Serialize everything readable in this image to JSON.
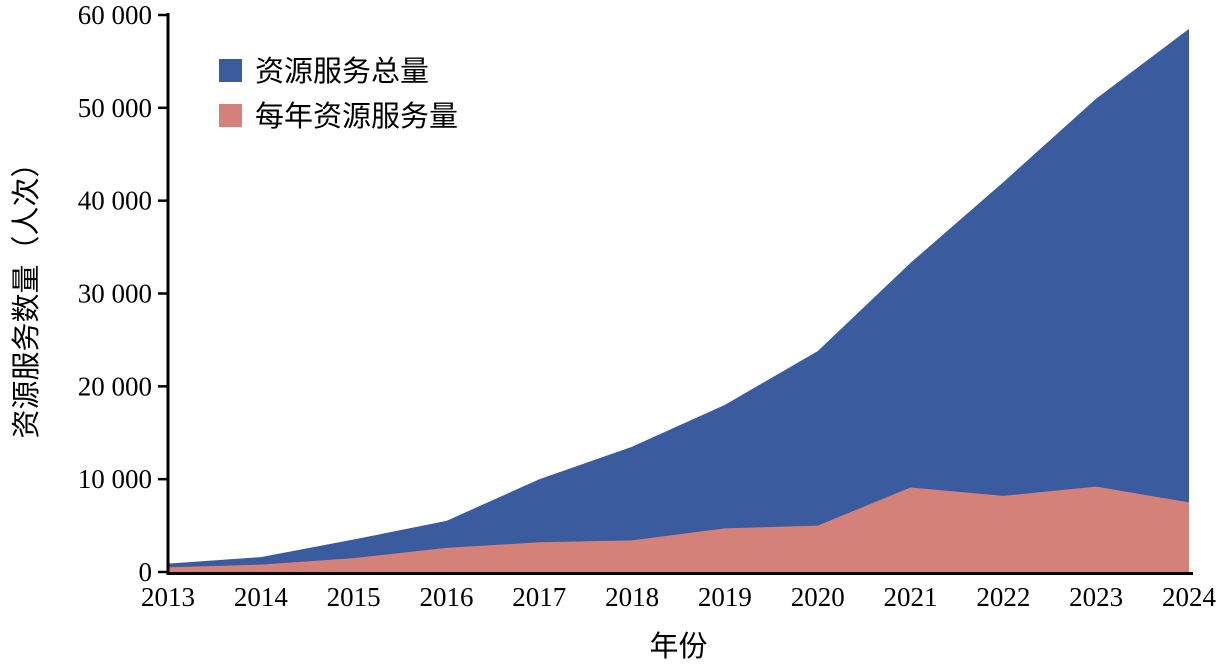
{
  "chart": {
    "colors": {
      "total_area": "#3A5C9E",
      "annual_area": "#D4817A",
      "axis": "#000000",
      "text": "#000000"
    },
    "legend": [
      {
        "label": "资源服务总量",
        "series": "total"
      },
      {
        "label": "每年资源服务量",
        "series": "annual"
      }
    ]
  },
  "chart_data": {
    "type": "area",
    "x": [
      "2013",
      "2014",
      "2015",
      "2016",
      "2017",
      "2018",
      "2019",
      "2020",
      "2021",
      "2022",
      "2023",
      "2024"
    ],
    "series": [
      {
        "name": "资源服务总量",
        "color": "#3A5C9E",
        "values": [
          900,
          1600,
          3500,
          5500,
          10000,
          13500,
          18000,
          23800,
          33300,
          42000,
          51000,
          58500
        ]
      },
      {
        "name": "每年资源服务量",
        "color": "#D4817A",
        "values": [
          500,
          800,
          1500,
          2600,
          3200,
          3400,
          4700,
          5000,
          9100,
          8200,
          9200,
          7500
        ]
      }
    ],
    "title": "",
    "xlabel": "年份",
    "ylabel": "资源服务数量（人次）",
    "ylim": [
      0,
      60000
    ],
    "yticks": [
      0,
      10000,
      20000,
      30000,
      40000,
      50000,
      60000
    ],
    "ytick_labels": [
      "0",
      "10 000",
      "20 000",
      "30 000",
      "40 000",
      "50 000",
      "60 000"
    ],
    "grid": false,
    "legend_position": "top-left"
  }
}
